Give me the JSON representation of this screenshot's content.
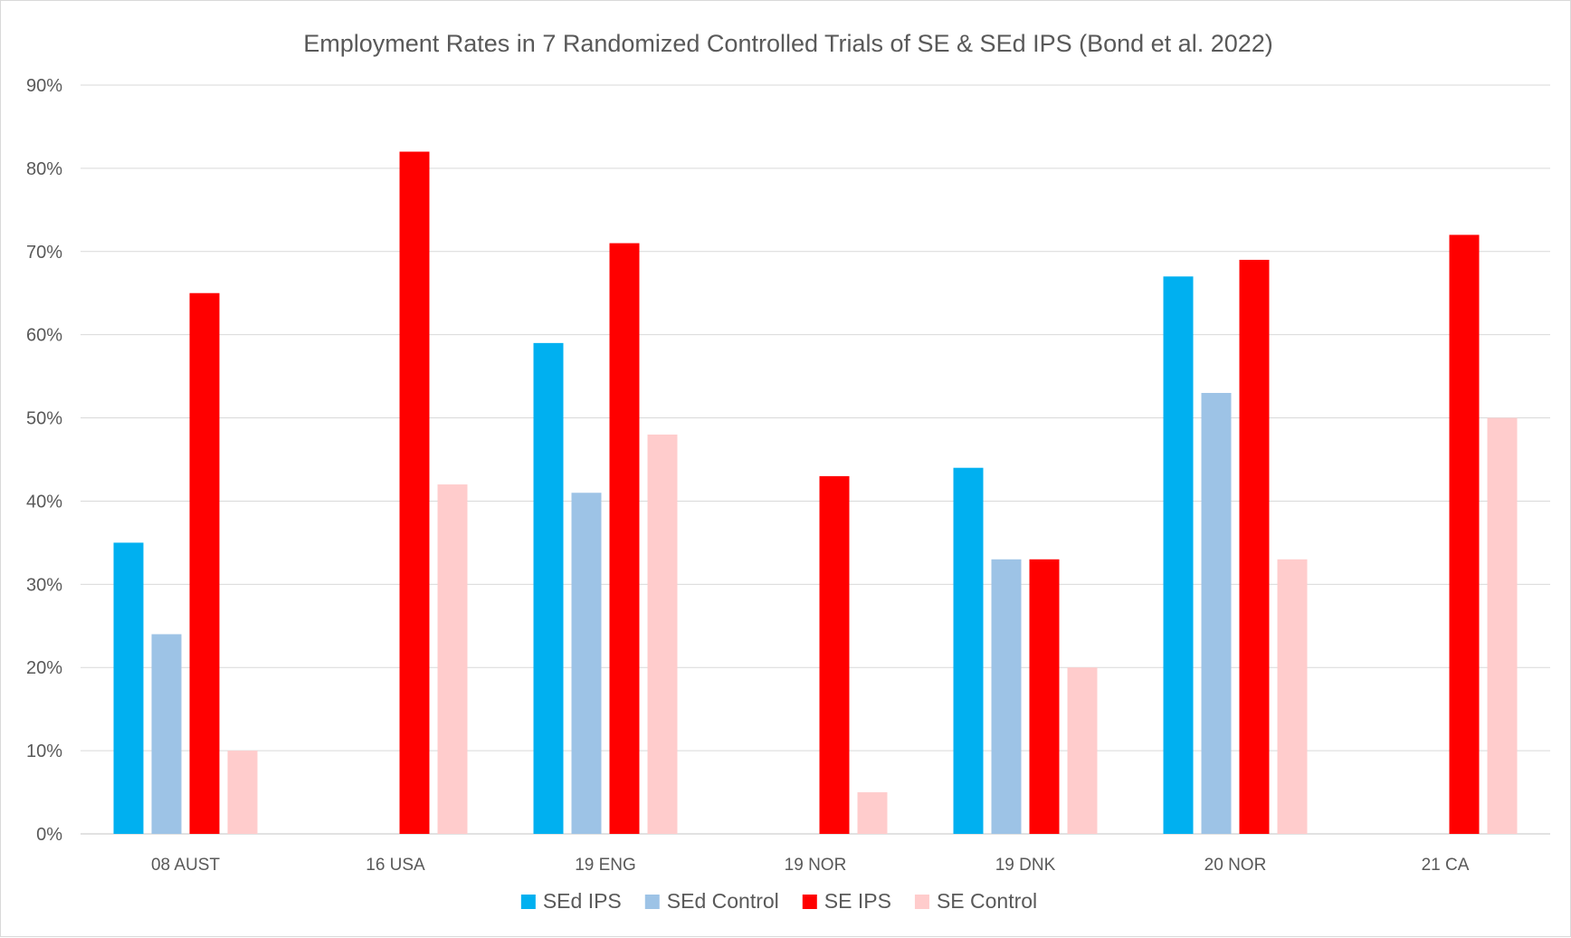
{
  "chart_data": {
    "type": "bar",
    "title": "Employment Rates in 7 Randomized Controlled Trials of SE & SEd IPS (Bond et al. 2022)",
    "xlabel": "",
    "ylabel": "",
    "categories": [
      "08 AUST",
      "16 USA",
      "19 ENG",
      "19 NOR",
      "19 DNK",
      "20 NOR",
      "21 CA"
    ],
    "yticks": [
      "0%",
      "10%",
      "20%",
      "30%",
      "40%",
      "50%",
      "60%",
      "70%",
      "80%",
      "90%"
    ],
    "ylim": [
      0,
      90
    ],
    "grid": true,
    "legend_position": "bottom",
    "series": [
      {
        "name": "SEd IPS",
        "color": "#00b0f0",
        "values": [
          35,
          null,
          59,
          null,
          44,
          67,
          null
        ]
      },
      {
        "name": "SEd Control",
        "color": "#9dc3e6",
        "values": [
          24,
          null,
          41,
          null,
          33,
          53,
          null
        ]
      },
      {
        "name": "SE IPS",
        "color": "#ff0000",
        "values": [
          65,
          82,
          71,
          43,
          33,
          69,
          72
        ]
      },
      {
        "name": "SE Control",
        "color": "#ffcccc",
        "values": [
          10,
          42,
          48,
          5,
          20,
          33,
          50
        ]
      }
    ]
  }
}
